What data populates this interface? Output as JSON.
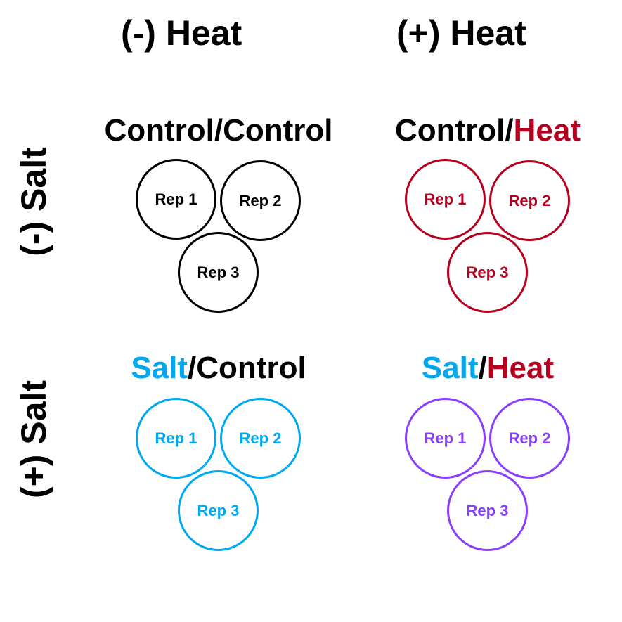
{
  "colors": {
    "black": "#000000",
    "heat": "#b5001f",
    "salt": "#00a8f0",
    "both": "#8a3ffc"
  },
  "columns": [
    "(-) Heat",
    "(+) Heat"
  ],
  "rows": [
    "(-) Salt",
    "(+) Salt"
  ],
  "conditions": [
    {
      "first": "Control",
      "slash": "/",
      "second": "Control",
      "reps": [
        "Rep 1",
        "Rep 2",
        "Rep 3"
      ]
    },
    {
      "first": "Control",
      "slash": "/",
      "second": "Heat",
      "reps": [
        "Rep 1",
        "Rep 2",
        "Rep 3"
      ]
    },
    {
      "first": "Salt",
      "slash": "/",
      "second": "Control",
      "reps": [
        "Rep 1",
        "Rep 2",
        "Rep 3"
      ]
    },
    {
      "first": "Salt",
      "slash": "/",
      "second": "Heat",
      "reps": [
        "Rep 1",
        "Rep 2",
        "Rep 3"
      ]
    }
  ]
}
